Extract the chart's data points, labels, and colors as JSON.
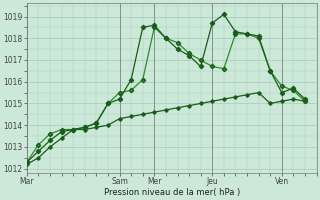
{
  "background_color": "#cce8d8",
  "grid_color": "#aacfbe",
  "line_color_dark": "#1a5c1a",
  "line_color_mid": "#2d8b2d",
  "xlabel": "Pression niveau de la mer( hPa )",
  "ylim": [
    1011.8,
    1019.6
  ],
  "yticks": [
    1012,
    1013,
    1014,
    1015,
    1016,
    1017,
    1018,
    1019
  ],
  "x_day_labels": [
    "Mar",
    "Sam",
    "Mer",
    "Jeu",
    "Ven"
  ],
  "x_day_positions": [
    0,
    8,
    11,
    16,
    22
  ],
  "xlim": [
    0,
    25
  ],
  "series1_x": [
    0,
    1,
    2,
    3,
    4,
    5,
    6,
    7,
    8,
    9,
    10,
    11,
    12,
    13,
    14,
    15,
    16,
    17,
    18,
    19,
    20,
    21,
    22,
    23,
    24
  ],
  "series1_y": [
    1012.2,
    1012.5,
    1013.0,
    1013.4,
    1013.8,
    1013.8,
    1013.9,
    1014.0,
    1014.3,
    1014.4,
    1014.5,
    1014.6,
    1014.7,
    1014.8,
    1014.9,
    1015.0,
    1015.1,
    1015.2,
    1015.3,
    1015.4,
    1015.5,
    1015.0,
    1015.1,
    1015.2,
    1015.1
  ],
  "series2_x": [
    0,
    1,
    2,
    3,
    4,
    5,
    6,
    7,
    8,
    9,
    10,
    11,
    12,
    13,
    14,
    15,
    16,
    17,
    18,
    19,
    20,
    21,
    22,
    23,
    24
  ],
  "series2_y": [
    1012.3,
    1013.1,
    1013.6,
    1013.8,
    1013.8,
    1013.9,
    1014.1,
    1015.0,
    1015.5,
    1015.6,
    1016.1,
    1018.5,
    1018.0,
    1017.8,
    1017.3,
    1017.0,
    1016.7,
    1016.6,
    1018.2,
    1018.2,
    1018.0,
    1016.5,
    1015.8,
    1015.6,
    1015.1
  ],
  "series3_x": [
    0,
    1,
    2,
    3,
    4,
    5,
    6,
    7,
    8,
    9,
    10,
    11,
    12,
    13,
    14,
    15,
    16,
    17,
    18,
    19,
    20,
    21,
    22,
    23,
    24
  ],
  "series3_y": [
    1012.3,
    1012.8,
    1013.3,
    1013.7,
    1013.8,
    1013.9,
    1014.1,
    1015.0,
    1015.2,
    1016.1,
    1018.5,
    1018.6,
    1018.0,
    1017.5,
    1017.2,
    1016.7,
    1018.7,
    1019.1,
    1018.3,
    1018.2,
    1018.1,
    1016.5,
    1015.5,
    1015.7,
    1015.2
  ]
}
